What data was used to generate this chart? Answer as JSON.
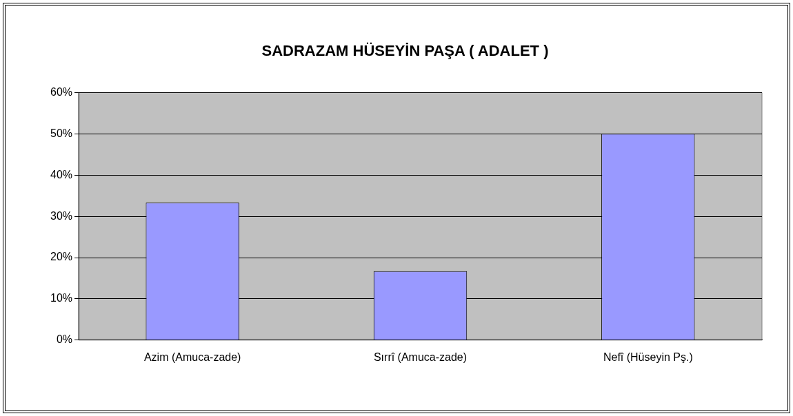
{
  "chart_data": {
    "type": "bar",
    "title": "SADRAZAM HÜSEYİN PAŞA ( ADALET )",
    "categories": [
      "Azim (Amuca-zade)",
      "Sırrî (Amuca-zade)",
      "Nefî (Hüseyin Pş.)"
    ],
    "values": [
      33.3,
      16.7,
      50
    ],
    "color": "#9999ff",
    "ylim": [
      0,
      60
    ],
    "yticks": [
      {
        "value": 0,
        "label": "0%"
      },
      {
        "value": 10,
        "label": "10%"
      },
      {
        "value": 20,
        "label": "20%"
      },
      {
        "value": 30,
        "label": "30%"
      },
      {
        "value": 40,
        "label": "40%"
      },
      {
        "value": 50,
        "label": "50%"
      },
      {
        "value": 60,
        "label": "60%"
      }
    ],
    "grid": "y",
    "legend": false
  }
}
